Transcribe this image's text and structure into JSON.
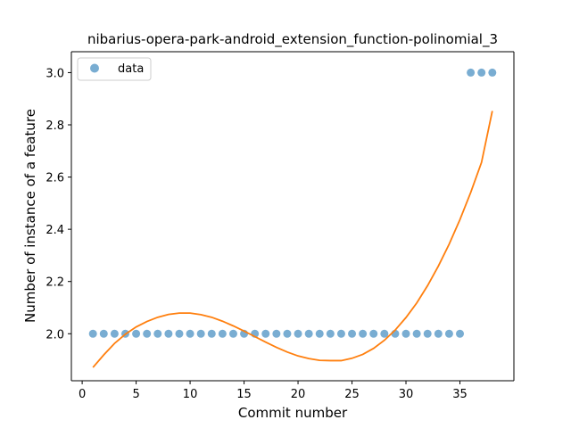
{
  "chart_data": {
    "type": "scatter",
    "title": "nibarius-opera-park-android_extension_function-polinomial_3",
    "xlabel": "Commit number",
    "ylabel": "Number of instance of a feature",
    "xlim": [
      -1,
      40
    ],
    "ylim": [
      1.82,
      3.08
    ],
    "xticks": [
      0,
      5,
      10,
      15,
      20,
      25,
      30,
      35
    ],
    "yticks": [
      2.0,
      2.2,
      2.4,
      2.6,
      2.8,
      3.0
    ],
    "yticks_labels": [
      "2.0",
      "2.2",
      "2.4",
      "2.6",
      "2.8",
      "3.0"
    ],
    "grid": false,
    "legend_position": "top-left",
    "series": [
      {
        "name": "data",
        "kind": "scatter",
        "color": "#1f77b4",
        "x": [
          1,
          2,
          3,
          4,
          5,
          6,
          7,
          8,
          9,
          10,
          11,
          12,
          13,
          14,
          15,
          16,
          17,
          18,
          19,
          20,
          21,
          22,
          23,
          24,
          25,
          26,
          27,
          28,
          29,
          30,
          31,
          32,
          33,
          34,
          35,
          36,
          37,
          38
        ],
        "y": [
          2,
          2,
          2,
          2,
          2,
          2,
          2,
          2,
          2,
          2,
          2,
          2,
          2,
          2,
          2,
          2,
          2,
          2,
          2,
          2,
          2,
          2,
          2,
          2,
          2,
          2,
          2,
          2,
          2,
          2,
          2,
          2,
          2,
          2,
          2,
          3,
          3,
          3
        ]
      },
      {
        "kind": "line",
        "color": "#ff7f0e",
        "x": [
          1,
          2,
          3,
          4,
          5,
          6,
          7,
          8,
          9,
          10,
          11,
          12,
          13,
          14,
          15,
          16,
          17,
          18,
          19,
          20,
          21,
          22,
          23,
          24,
          25,
          26,
          27,
          28,
          29,
          30,
          31,
          32,
          33,
          34,
          35,
          36,
          37,
          38
        ],
        "y": [
          1.871,
          1.919,
          1.963,
          1.998,
          2.026,
          2.047,
          2.063,
          2.074,
          2.079,
          2.079,
          2.073,
          2.063,
          2.048,
          2.03,
          2.01,
          1.989,
          1.968,
          1.948,
          1.93,
          1.915,
          1.905,
          1.898,
          1.897,
          1.897,
          1.906,
          1.921,
          1.944,
          1.975,
          2.014,
          2.062,
          2.118,
          2.184,
          2.259,
          2.343,
          2.437,
          2.541,
          2.656,
          2.853
        ]
      }
    ]
  }
}
